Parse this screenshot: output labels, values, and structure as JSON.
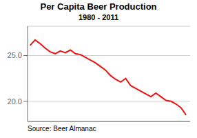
{
  "chart_data": {
    "type": "line",
    "title": "Per Capita Beer Production",
    "subtitle": "1980 - 2011",
    "annotations": [
      "Source: Beer Almanac"
    ],
    "x": [
      1980,
      1981,
      1982,
      1983,
      1984,
      1985,
      1986,
      1987,
      1988,
      1989,
      1990,
      1991,
      1992,
      1993,
      1994,
      1995,
      1996,
      1997,
      1998,
      1999,
      2000,
      2001,
      2002,
      2003,
      2004,
      2005,
      2006,
      2007,
      2008,
      2009,
      2010,
      2011
    ],
    "values": [
      26.1,
      26.7,
      26.3,
      25.8,
      25.4,
      25.2,
      25.5,
      25.3,
      25.6,
      25.2,
      25.1,
      24.8,
      24.5,
      24.2,
      23.8,
      23.4,
      22.8,
      22.4,
      22.1,
      22.5,
      21.7,
      21.4,
      21.1,
      20.8,
      20.5,
      20.9,
      20.5,
      20.1,
      20.0,
      19.7,
      19.3,
      18.5
    ],
    "color": "#ee1111",
    "xlim": [
      1979.5,
      2011.8
    ],
    "ylim": [
      17.8,
      28.2
    ],
    "yticks": [
      {
        "value": 20.0,
        "label": "20.0"
      },
      {
        "value": 25.0,
        "label": "25.0"
      }
    ],
    "grid": true,
    "tick_labels": "y"
  }
}
